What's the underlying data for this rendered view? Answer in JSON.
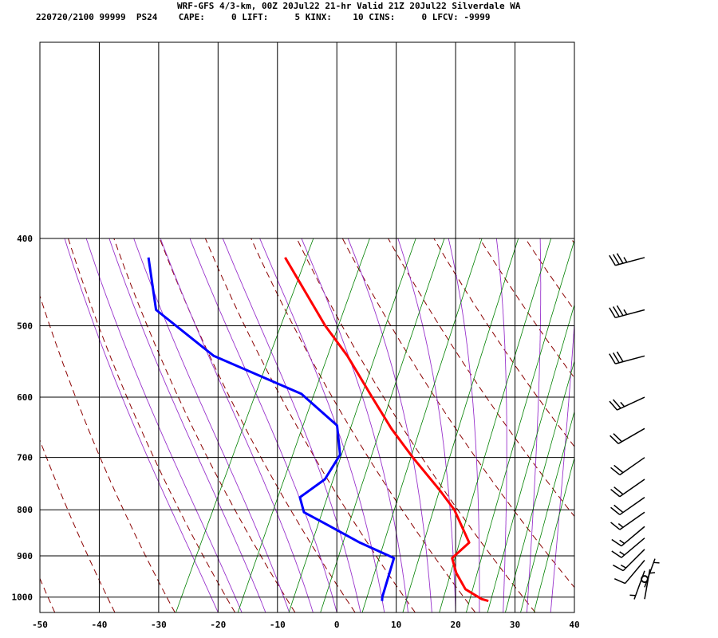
{
  "header": {
    "line1": "WRF-GFS 4/3-km, 00Z 20Jul22 21-hr Valid 21Z 20Jul22 Silverdale WA",
    "line2": "220720/2100 99999  PS24    CAPE:     0 LIFT:     5 KINX:    10 CINS:     0 LFCV: -9999"
  },
  "chart_data": {
    "type": "skew-t",
    "title": "WRF-GFS 4/3-km, 00Z 20Jul22 21-hr Valid 21Z 20Jul22 Silverdale WA",
    "x_range_C": [
      -50,
      40
    ],
    "p_range_hPa": [
      400,
      1040
    ],
    "x_tick_labels": [
      "-50",
      "-40",
      "-30",
      "-20",
      "-10",
      "0",
      "10",
      "20",
      "30",
      "40"
    ],
    "p_tick_labels": [
      "400",
      "500",
      "600",
      "700",
      "800",
      "900",
      "1000"
    ],
    "temperature_profile": [
      {
        "p": 1010,
        "t": 24.5
      },
      {
        "p": 1005,
        "t": 23.2
      },
      {
        "p": 980,
        "t": 19.6
      },
      {
        "p": 940,
        "t": 16.6
      },
      {
        "p": 905,
        "t": 14.6
      },
      {
        "p": 870,
        "t": 16.1
      },
      {
        "p": 800,
        "t": 10.7
      },
      {
        "p": 760,
        "t": 6.4
      },
      {
        "p": 700,
        "t": -0.9
      },
      {
        "p": 650,
        "t": -7.1
      },
      {
        "p": 600,
        "t": -13.1
      },
      {
        "p": 540,
        "t": -20.9
      },
      {
        "p": 500,
        "t": -27.3
      },
      {
        "p": 420,
        "t": -40.1
      }
    ],
    "dewpoint_profile": [
      {
        "p": 1010,
        "t": 6.6
      },
      {
        "p": 1000,
        "t": 6.3
      },
      {
        "p": 905,
        "t": 4.8
      },
      {
        "p": 870,
        "t": -2.3
      },
      {
        "p": 830,
        "t": -9.6
      },
      {
        "p": 805,
        "t": -14.4
      },
      {
        "p": 775,
        "t": -16.4
      },
      {
        "p": 740,
        "t": -13.8
      },
      {
        "p": 695,
        "t": -13.4
      },
      {
        "p": 645,
        "t": -16.5
      },
      {
        "p": 595,
        "t": -25.3
      },
      {
        "p": 540,
        "t": -43.4
      },
      {
        "p": 480,
        "t": -57.2
      },
      {
        "p": 420,
        "t": -63.1
      }
    ],
    "wind_barbs": [
      {
        "p": 420,
        "dir": 255,
        "speed": 35
      },
      {
        "p": 480,
        "dir": 255,
        "speed": 35
      },
      {
        "p": 540,
        "dir": 255,
        "speed": 30
      },
      {
        "p": 600,
        "dir": 245,
        "speed": 25
      },
      {
        "p": 650,
        "dir": 240,
        "speed": 20
      },
      {
        "p": 700,
        "dir": 235,
        "speed": 20
      },
      {
        "p": 740,
        "dir": 235,
        "speed": 20
      },
      {
        "p": 775,
        "dir": 235,
        "speed": 20
      },
      {
        "p": 805,
        "dir": 235,
        "speed": 15
      },
      {
        "p": 835,
        "dir": 230,
        "speed": 15
      },
      {
        "p": 860,
        "dir": 230,
        "speed": 15
      },
      {
        "p": 885,
        "dir": 225,
        "speed": 15
      },
      {
        "p": 910,
        "dir": 220,
        "speed": 10
      },
      {
        "p": 935,
        "dir": 200,
        "speed": 5
      },
      {
        "p": 955,
        "dir": 180,
        "speed": 0
      },
      {
        "p": 975,
        "dir": 20,
        "speed": 5
      },
      {
        "p": 1005,
        "dir": 10,
        "speed": 5
      }
    ],
    "line_colors": {
      "temperature": "#ff0000",
      "dewpoint": "#0000ff",
      "isotherm": "#000000",
      "isobar": "#000000",
      "dry_adiabat": "#8b0000",
      "moist_adiabat": "#9933cc",
      "mixing_ratio": "#008000",
      "wind_barb": "#000000"
    },
    "grid": true
  }
}
